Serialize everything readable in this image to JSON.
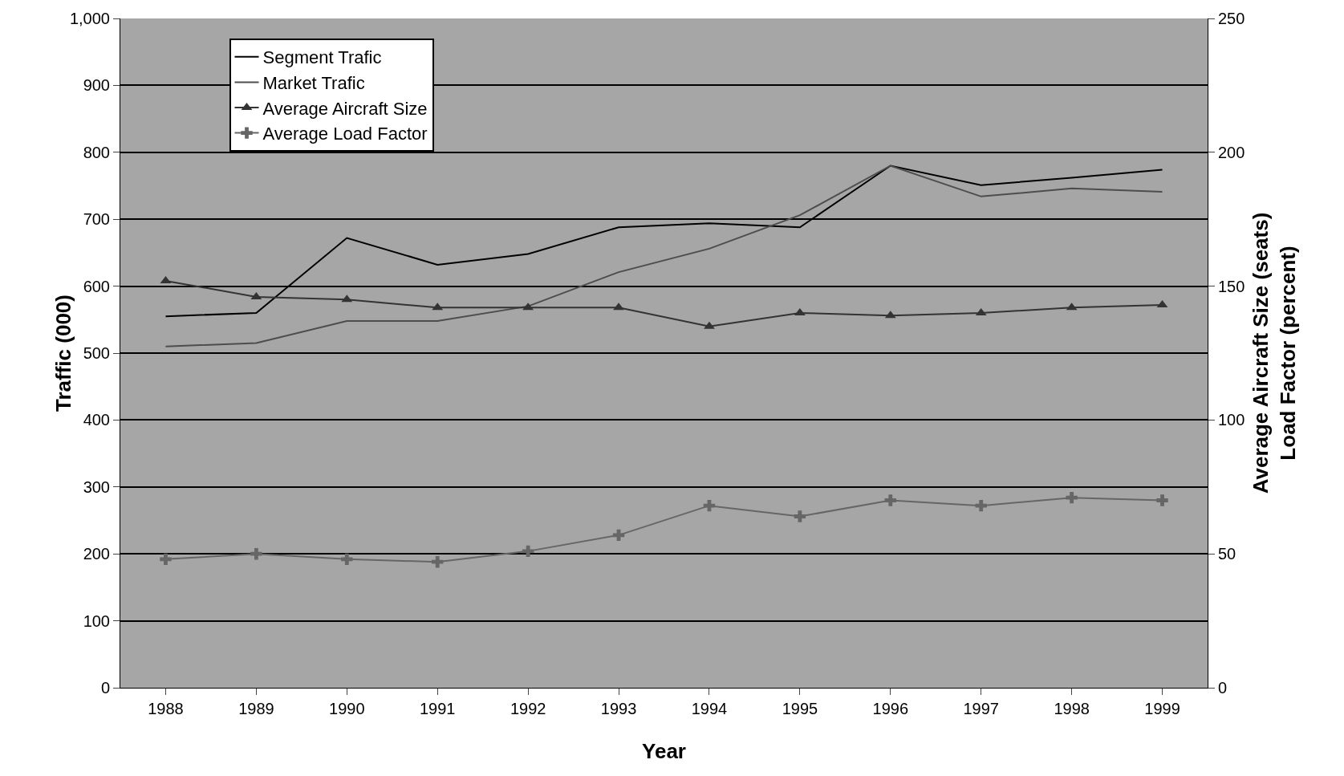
{
  "chart_data": {
    "type": "line",
    "xlabel": "Year",
    "ylabel": "Traffic (000)",
    "y2label": "Average Aircraft Size (seats)\nLoad Factor (percent)",
    "categories": [
      "1988",
      "1989",
      "1990",
      "1991",
      "1992",
      "1993",
      "1994",
      "1995",
      "1996",
      "1997",
      "1998",
      "1999"
    ],
    "series": [
      {
        "name": "Segment Trafic",
        "color": "#000000",
        "marker": "none",
        "values": [
          555,
          560,
          672,
          632,
          648,
          688,
          694,
          688,
          780,
          751,
          762,
          774
        ]
      },
      {
        "name": "Market Trafic",
        "color": "#4d4d4d",
        "marker": "none",
        "values": [
          510,
          515,
          548,
          548,
          570,
          621,
          656,
          706,
          780,
          734,
          746,
          741
        ]
      },
      {
        "name": "Average Aircraft Size",
        "color": "#333333",
        "marker": "triangle",
        "axis": "y2",
        "values": [
          152,
          146,
          145,
          142,
          142,
          142,
          135,
          140,
          139,
          140,
          142,
          143
        ]
      },
      {
        "name": "Average Load Factor",
        "color": "#666666",
        "marker": "cross",
        "axis": "y2",
        "values": [
          48,
          50,
          48,
          47,
          51,
          57,
          68,
          64,
          70,
          68,
          71,
          70
        ]
      }
    ],
    "ylim": [
      0,
      1000
    ],
    "yticks": [
      0,
      100,
      200,
      300,
      400,
      500,
      600,
      700,
      800,
      900,
      {
        "value": 1000,
        "label": "1,000"
      }
    ],
    "y2lim": [
      0,
      250
    ],
    "y2ticks": [
      0,
      50,
      100,
      150,
      200,
      250
    ],
    "grid": "y",
    "legend": "top left",
    "line_style": "solid"
  }
}
